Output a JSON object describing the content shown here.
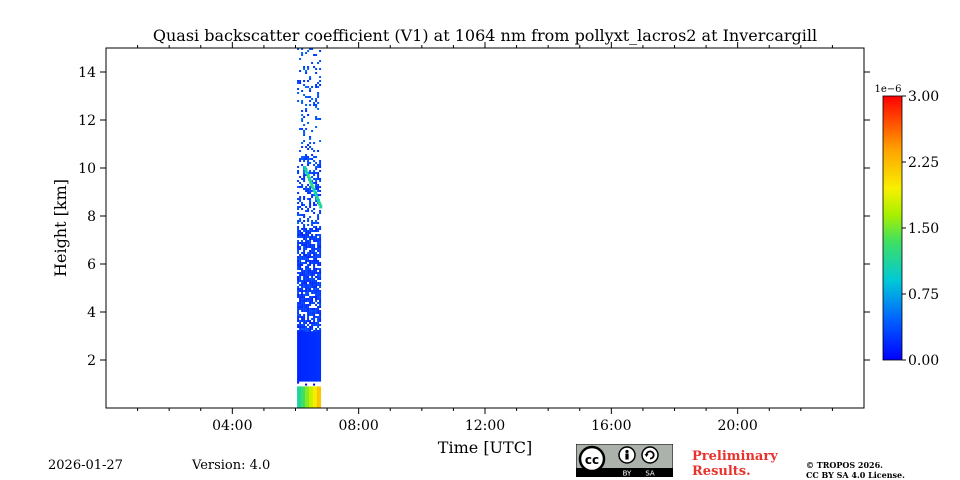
{
  "chart_data": {
    "type": "heatmap",
    "title": "Quasi backscatter coefficient (V1) at 1064 nm from pollyxt_lacros2 at Invercargill",
    "xlabel": "Time [UTC]",
    "ylabel": "Height [km]",
    "xlim_hours": [
      0,
      24
    ],
    "ylim_km": [
      0,
      15
    ],
    "x_ticks": [
      {
        "hour": 4,
        "label": "04:00"
      },
      {
        "hour": 8,
        "label": "08:00"
      },
      {
        "hour": 12,
        "label": "12:00"
      },
      {
        "hour": 16,
        "label": "16:00"
      },
      {
        "hour": 20,
        "label": "20:00"
      }
    ],
    "y_ticks": [
      {
        "value": 2,
        "label": "2"
      },
      {
        "value": 4,
        "label": "4"
      },
      {
        "value": 6,
        "label": "6"
      },
      {
        "value": 8,
        "label": "8"
      },
      {
        "value": 10,
        "label": "10"
      },
      {
        "value": 12,
        "label": "12"
      },
      {
        "value": 14,
        "label": "14"
      }
    ],
    "colorbar": {
      "exponent_label": "1e−6",
      "range": [
        0,
        3.0
      ],
      "ticks": [
        {
          "value": 0.0,
          "label": "0.00"
        },
        {
          "value": 0.75,
          "label": "0.75"
        },
        {
          "value": 1.5,
          "label": "1.50"
        },
        {
          "value": 2.25,
          "label": "2.25"
        },
        {
          "value": 3.0,
          "label": "3.00"
        }
      ],
      "colormap": "jet"
    },
    "data_regions": [
      {
        "start_hour": 6.05,
        "end_hour": 6.8,
        "from_km": 0.0,
        "to_km": 0.9,
        "value_e6": 1.6,
        "density": 1.0,
        "note": "near-surface high backscatter"
      },
      {
        "start_hour": 6.05,
        "end_hour": 6.8,
        "from_km": 0.9,
        "to_km": 1.1,
        "value_e6": 0.0,
        "density": 0.15,
        "note": "gap"
      },
      {
        "start_hour": 6.05,
        "end_hour": 6.8,
        "from_km": 1.1,
        "to_km": 3.2,
        "value_e6": 0.2,
        "density": 1.0,
        "note": "boundary layer"
      },
      {
        "start_hour": 6.05,
        "end_hour": 6.8,
        "from_km": 3.2,
        "to_km": 7.5,
        "value_e6": 0.25,
        "density": 0.8
      },
      {
        "start_hour": 6.05,
        "end_hour": 6.8,
        "from_km": 7.5,
        "to_km": 10.5,
        "value_e6": 0.3,
        "density": 0.45
      },
      {
        "start_hour": 6.05,
        "end_hour": 6.8,
        "from_km": 10.5,
        "to_km": 15.0,
        "value_e6": 0.35,
        "density": 0.18
      }
    ],
    "features": [
      {
        "type": "cloud_layer",
        "from_hour": 6.3,
        "to_hour": 6.8,
        "from_km": 10.0,
        "to_km": 8.4,
        "value_e6": 1.2
      }
    ]
  },
  "footer": {
    "date": "2026-01-27",
    "version": "Version: 4.0",
    "preliminary_line1": "Preliminary",
    "preliminary_line2": "Results.",
    "copyright_line1": "© TROPOS 2026.",
    "copyright_line2": "CC BY SA 4.0 License.",
    "cc_label": "cc",
    "by_label": "BY",
    "sa_label": "SA"
  }
}
